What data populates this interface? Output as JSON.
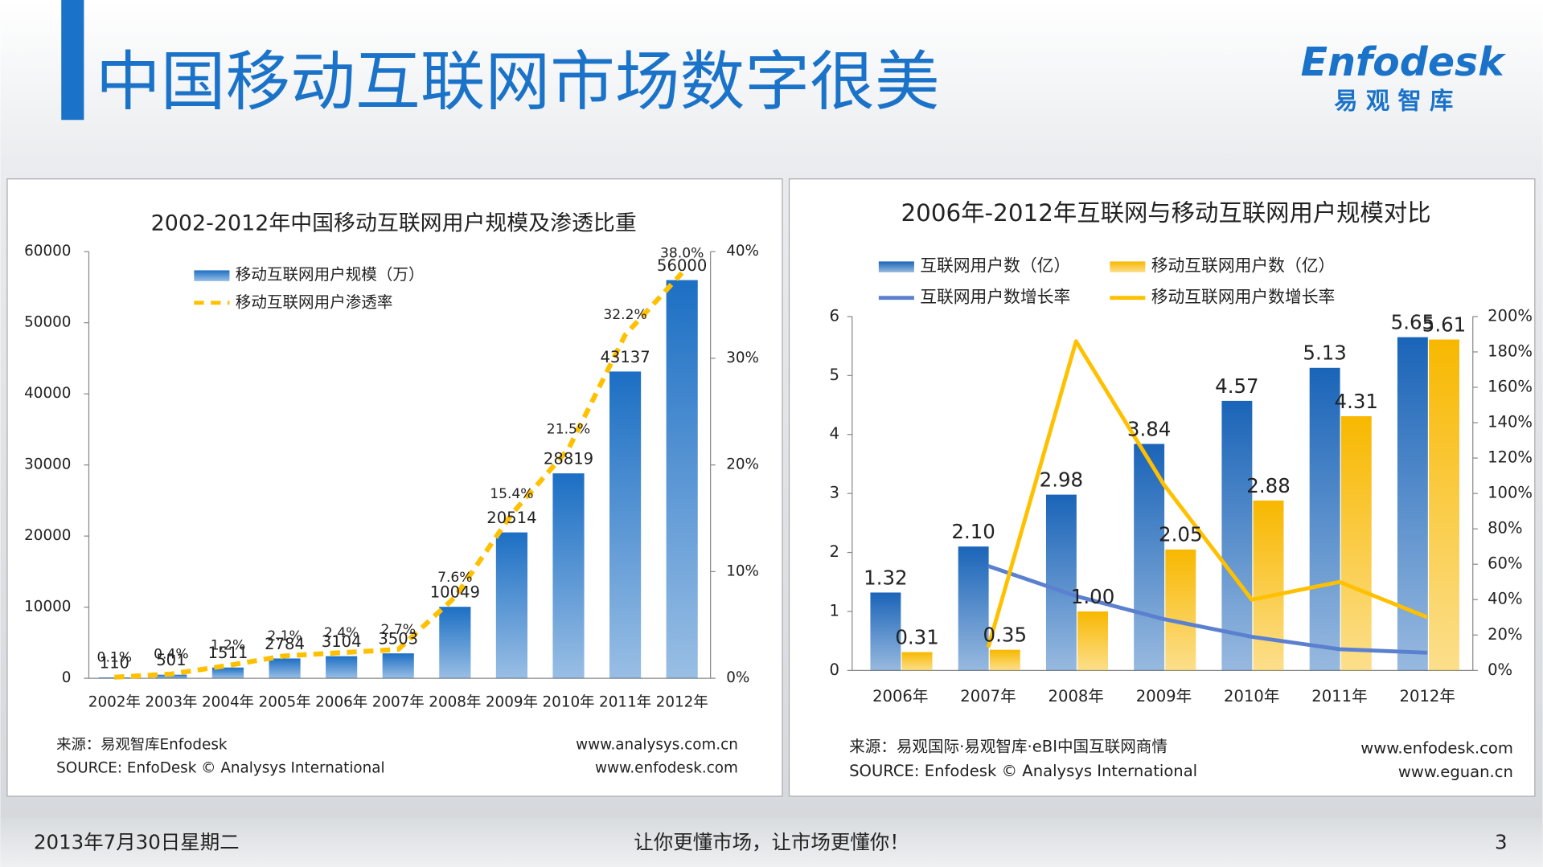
{
  "header": {
    "title": "中国移动互联网市场数字很美"
  },
  "logo": {
    "name": "Enfodesk",
    "tagline": "易 观 智 库"
  },
  "footer": {
    "date": "2013年7月30日星期二",
    "slogan": "让你更懂市场，让市场更懂你！",
    "page": "3"
  },
  "chart_data": [
    {
      "type": "bar",
      "title": "2002-2012年中国移动互联网用户规模及渗透比重",
      "categories": [
        "2002年",
        "2003年",
        "2004年",
        "2005年",
        "2006年",
        "2007年",
        "2008年",
        "2009年",
        "2010年",
        "2011年",
        "2012年"
      ],
      "series": [
        {
          "name": "移动互联网用户规模（万）",
          "type": "bar",
          "color": "#1c6fc4",
          "values": [
            110,
            501,
            1511,
            2784,
            3104,
            3503,
            10049,
            20514,
            28819,
            43137,
            56000
          ]
        },
        {
          "name": "移动互联网用户渗透率",
          "type": "line",
          "axis": "y2",
          "color": "#ffc000",
          "dashed": true,
          "values": [
            0.1,
            0.4,
            1.2,
            2.1,
            2.4,
            2.7,
            7.6,
            15.4,
            21.5,
            32.2,
            38.0
          ],
          "value_labels": [
            "0.1%",
            "0.4%",
            "1.2%",
            "2.1%",
            "2.4%",
            "2.7%",
            "7.6%",
            "15.4%",
            "21.5%",
            "32.2%",
            "38.0%"
          ]
        }
      ],
      "ylim": [
        0,
        60000
      ],
      "yticks": [
        0,
        10000,
        20000,
        30000,
        40000,
        50000,
        60000
      ],
      "y2lim": [
        0,
        40
      ],
      "y2ticks": [
        {
          "value": 0,
          "label": "0%"
        },
        {
          "value": 10,
          "label": "10%"
        },
        {
          "value": 20,
          "label": "20%"
        },
        {
          "value": 30,
          "label": "30%"
        },
        {
          "value": 40,
          "label": "40%"
        }
      ],
      "source": [
        "来源：易观智库Enfodesk",
        "SOURCE: EnfoDesk © Analysys International"
      ],
      "urls": [
        "www.analysys.com.cn",
        "www.enfodesk.com"
      ]
    },
    {
      "type": "bar",
      "title": "2006年-2012年互联网与移动互联网用户规模对比",
      "categories": [
        "2006年",
        "2007年",
        "2008年",
        "2009年",
        "2010年",
        "2011年",
        "2012年"
      ],
      "series": [
        {
          "name": "互联网用户数（亿）",
          "type": "bar",
          "color": "#1a64b8",
          "values": [
            1.32,
            2.1,
            2.98,
            3.84,
            4.57,
            5.13,
            5.65
          ],
          "value_labels": [
            "1.32",
            "2.10",
            "2.98",
            "3.84",
            "4.57",
            "5.13",
            "5.65"
          ]
        },
        {
          "name": "移动互联网用户数（亿）",
          "type": "bar",
          "color": "#f8b800",
          "values": [
            0.31,
            0.35,
            1.0,
            2.05,
            2.88,
            4.31,
            5.61
          ],
          "value_labels": [
            "0.31",
            "0.35",
            "1.00",
            "2.05",
            "2.88",
            "4.31",
            "5.61"
          ]
        },
        {
          "name": "互联网用户数增长率",
          "type": "line",
          "axis": "y2",
          "color": "#5b80d0",
          "values": [
            null,
            59,
            42,
            29,
            19,
            12,
            10
          ]
        },
        {
          "name": "移动互联网用户数增长率",
          "type": "line",
          "axis": "y2",
          "color": "#ffc000",
          "values": [
            null,
            13,
            186,
            105,
            40,
            50,
            30
          ]
        }
      ],
      "ylim": [
        0,
        6
      ],
      "yticks": [
        0,
        1,
        2,
        3,
        4,
        5,
        6
      ],
      "y2lim": [
        0,
        200
      ],
      "y2ticks": [
        {
          "value": 0,
          "label": "0%"
        },
        {
          "value": 20,
          "label": "20%"
        },
        {
          "value": 40,
          "label": "40%"
        },
        {
          "value": 60,
          "label": "60%"
        },
        {
          "value": 80,
          "label": "80%"
        },
        {
          "value": 100,
          "label": "100%"
        },
        {
          "value": 120,
          "label": "120%"
        },
        {
          "value": 140,
          "label": "140%"
        },
        {
          "value": 160,
          "label": "160%"
        },
        {
          "value": 180,
          "label": "180%"
        },
        {
          "value": 200,
          "label": "200%"
        }
      ],
      "source": [
        "来源：易观国际·易观智库·eBI中国互联网商情",
        "SOURCE: Enfodesk © Analysys International"
      ],
      "urls": [
        "www.enfodesk.com",
        "www.eguan.cn"
      ]
    }
  ]
}
